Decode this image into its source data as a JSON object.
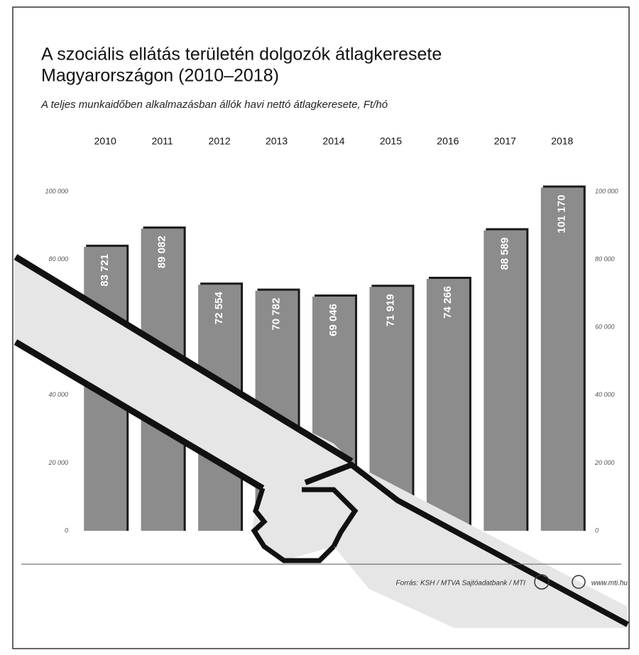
{
  "chart_data": {
    "type": "bar",
    "title": [
      "A szociális ellátás területén dolgozók átlagkeresete",
      "Magyarországon (2010–2018)"
    ],
    "subtitle": "A teljes munkaidőben alkalmazásban állók havi nettó átlagkeresete, Ft/hó",
    "categories": [
      "2010",
      "2011",
      "2012",
      "2013",
      "2014",
      "2015",
      "2016",
      "2017",
      "2018"
    ],
    "values": [
      83721,
      89082,
      72554,
      70782,
      69046,
      71919,
      74266,
      88589,
      101170
    ],
    "value_labels": [
      "83 721",
      "89 082",
      "72 554",
      "70 782",
      "69 046",
      "71 919",
      "74 266",
      "88 589",
      "101 170"
    ],
    "color": "#8c8c8c",
    "ylim": [
      0,
      100000
    ],
    "yticks": [
      {
        "value": 0,
        "label": "0"
      },
      {
        "value": 20000,
        "label": "20 000"
      },
      {
        "value": 40000,
        "label": "40 000"
      },
      {
        "value": 60000,
        "label": "60 000"
      },
      {
        "value": 80000,
        "label": "80 000"
      },
      {
        "value": 100000,
        "label": "100 000"
      }
    ],
    "source": "Forrás: KSH / MTVA Sajtóadatbank / MTI",
    "website": "www.mti.hu"
  }
}
